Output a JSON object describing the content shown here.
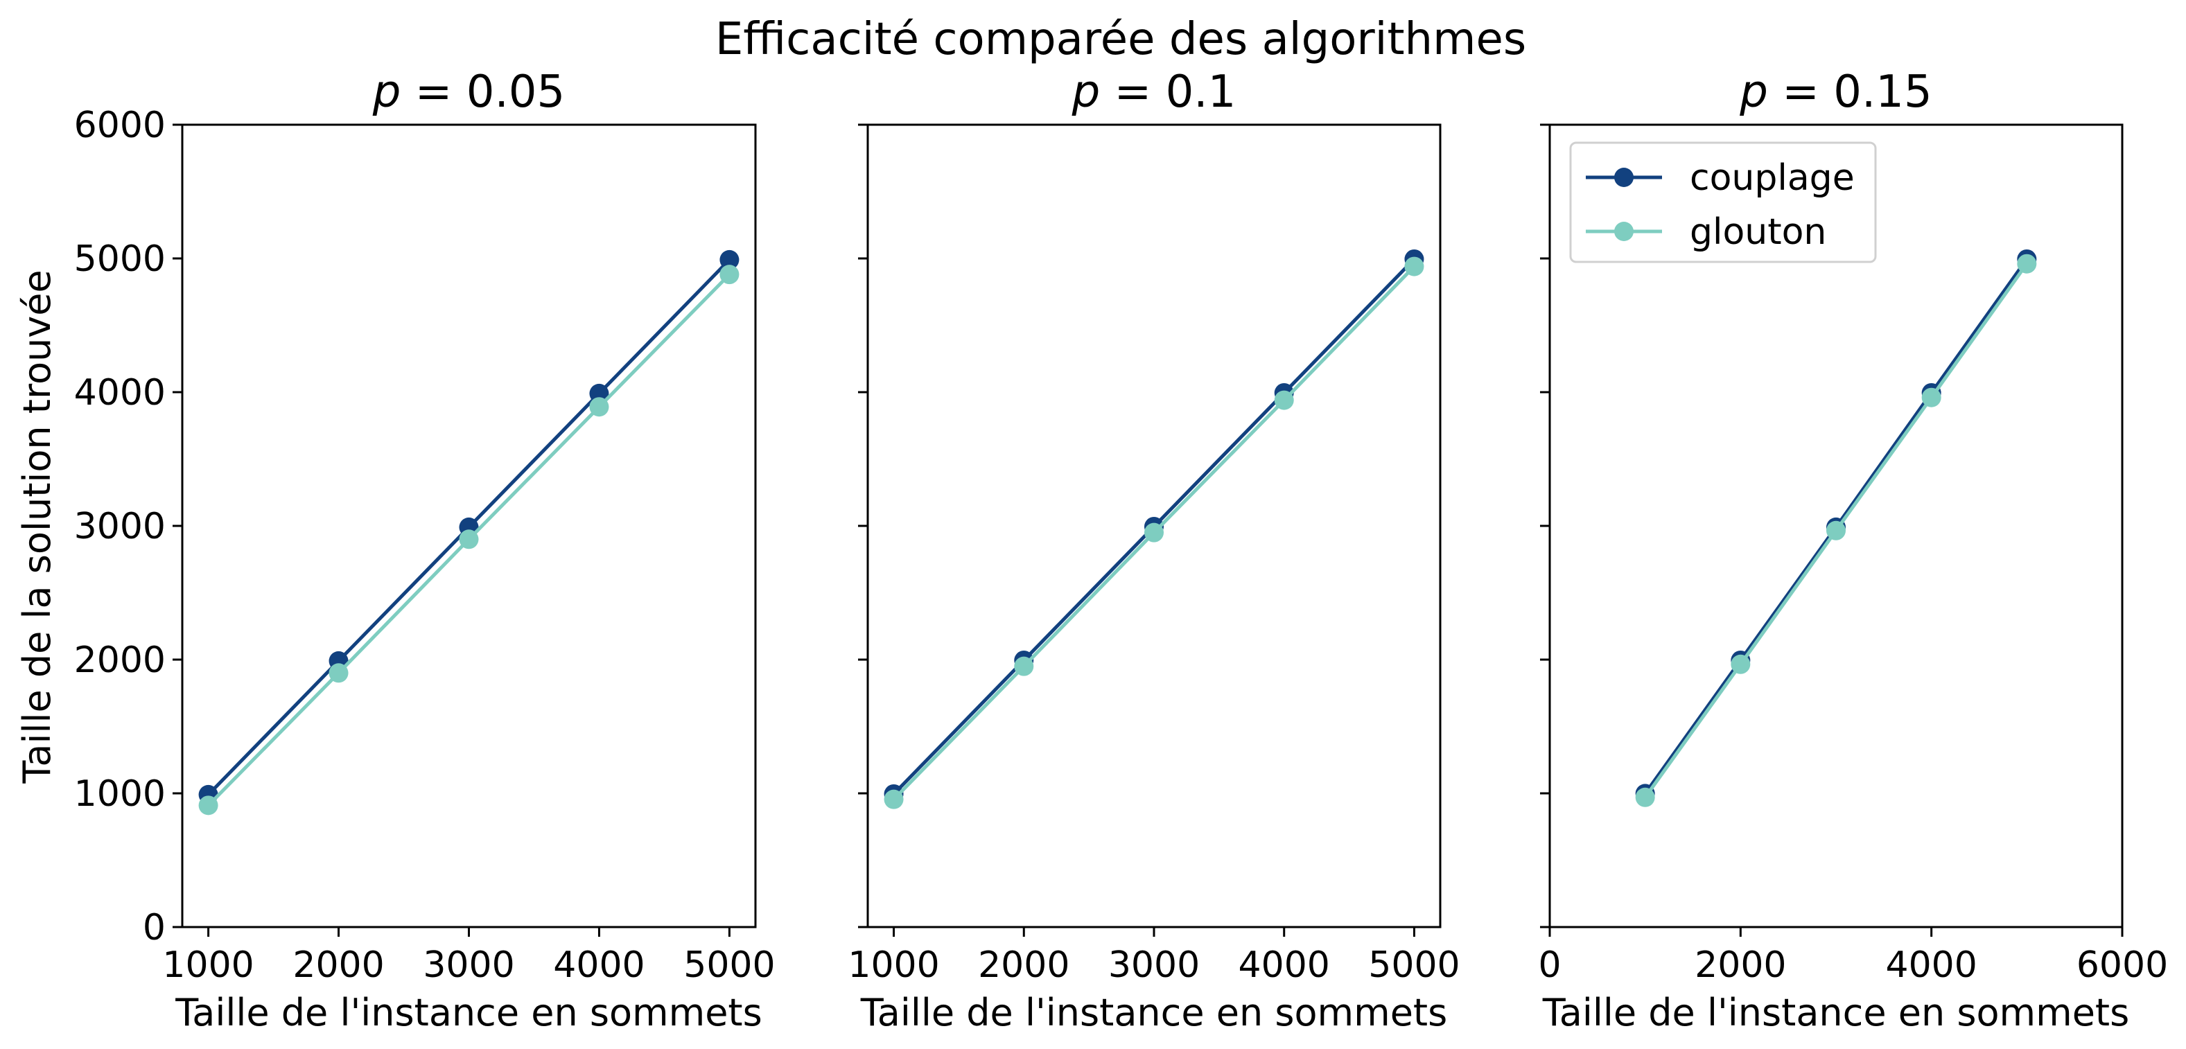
{
  "chart_data": {
    "type": "line",
    "title": "Efficacité comparée des algorithmes",
    "ylabel": "Taille de la solution trouvée",
    "legend_placement": "upper-left (third panel)",
    "grid": false,
    "colors": {
      "couplage": "#12417f",
      "glouton": "#7ecdc0"
    },
    "panels": [
      {
        "title_var": "p",
        "title_value": "0.05",
        "xlabel": "Taille de l'instance en sommets",
        "xlim": [
          800,
          5200
        ],
        "ylim": [
          0,
          6000
        ],
        "xticks": [
          1000,
          2000,
          3000,
          4000,
          5000
        ],
        "yticks": [
          0,
          1000,
          2000,
          3000,
          4000,
          5000,
          6000
        ],
        "show_ytick_labels": true,
        "x": [
          1000,
          2000,
          3000,
          4000,
          5000
        ],
        "series": [
          {
            "name": "couplage",
            "values": [
              990,
              1990,
              2990,
              3990,
              4990
            ]
          },
          {
            "name": "glouton",
            "values": [
              910,
              1900,
              2900,
              3890,
              4880
            ]
          }
        ]
      },
      {
        "title_var": "p",
        "title_value": "0.1",
        "xlabel": "Taille de l'instance en sommets",
        "xlim": [
          800,
          5200
        ],
        "ylim": [
          0,
          6000
        ],
        "xticks": [
          1000,
          2000,
          3000,
          4000,
          5000
        ],
        "yticks": [
          0,
          1000,
          2000,
          3000,
          4000,
          5000,
          6000
        ],
        "show_ytick_labels": false,
        "x": [
          1000,
          2000,
          3000,
          4000,
          5000
        ],
        "series": [
          {
            "name": "couplage",
            "values": [
              995,
              1995,
              2995,
              3995,
              4995
            ]
          },
          {
            "name": "glouton",
            "values": [
              955,
              1950,
              2950,
              3940,
              4940
            ]
          }
        ]
      },
      {
        "title_var": "p",
        "title_value": "0.15",
        "xlabel": "Taille de l'instance en sommets",
        "xlim": [
          0,
          6000
        ],
        "ylim": [
          0,
          6000
        ],
        "xticks": [
          0,
          2000,
          4000,
          6000
        ],
        "yticks": [
          0,
          1000,
          2000,
          3000,
          4000,
          5000,
          6000
        ],
        "show_ytick_labels": false,
        "x": [
          1000,
          2000,
          3000,
          4000,
          5000
        ],
        "series": [
          {
            "name": "couplage",
            "values": [
              998,
              1995,
              2990,
              3995,
              4995
            ]
          },
          {
            "name": "glouton",
            "values": [
              970,
              1965,
              2965,
              3960,
              4960
            ]
          }
        ]
      }
    ]
  }
}
